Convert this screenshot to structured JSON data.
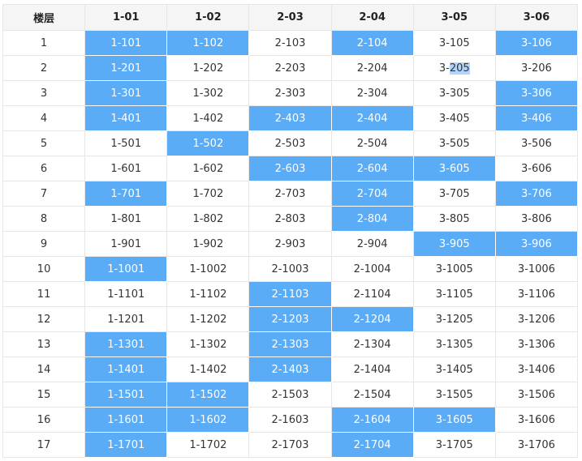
{
  "header": {
    "floor_label": "楼层",
    "units": [
      "1-01",
      "1-02",
      "2-03",
      "2-04",
      "3-05",
      "3-06"
    ]
  },
  "selected_color": "#5aacf7",
  "rows": [
    {
      "floor": "1",
      "rooms": [
        "1-101",
        "1-102",
        "2-103",
        "2-104",
        "3-105",
        "3-106"
      ],
      "selected": [
        true,
        true,
        false,
        true,
        false,
        true
      ]
    },
    {
      "floor": "2",
      "rooms": [
        "1-201",
        "1-202",
        "2-203",
        "2-204",
        "3-205",
        "3-206"
      ],
      "selected": [
        true,
        false,
        false,
        false,
        false,
        false
      ],
      "text_highlight": {
        "col": 4,
        "prefix": "3-",
        "highlight": "205"
      }
    },
    {
      "floor": "3",
      "rooms": [
        "1-301",
        "1-302",
        "2-303",
        "2-304",
        "3-305",
        "3-306"
      ],
      "selected": [
        true,
        false,
        false,
        false,
        false,
        true
      ]
    },
    {
      "floor": "4",
      "rooms": [
        "1-401",
        "1-402",
        "2-403",
        "2-404",
        "3-405",
        "3-406"
      ],
      "selected": [
        true,
        false,
        true,
        true,
        false,
        true
      ]
    },
    {
      "floor": "5",
      "rooms": [
        "1-501",
        "1-502",
        "2-503",
        "2-504",
        "3-505",
        "3-506"
      ],
      "selected": [
        false,
        true,
        false,
        false,
        false,
        false
      ]
    },
    {
      "floor": "6",
      "rooms": [
        "1-601",
        "1-602",
        "2-603",
        "2-604",
        "3-605",
        "3-606"
      ],
      "selected": [
        false,
        false,
        true,
        true,
        true,
        false
      ]
    },
    {
      "floor": "7",
      "rooms": [
        "1-701",
        "1-702",
        "2-703",
        "2-704",
        "3-705",
        "3-706"
      ],
      "selected": [
        true,
        false,
        false,
        true,
        false,
        true
      ]
    },
    {
      "floor": "8",
      "rooms": [
        "1-801",
        "1-802",
        "2-803",
        "2-804",
        "3-805",
        "3-806"
      ],
      "selected": [
        false,
        false,
        false,
        true,
        false,
        false
      ]
    },
    {
      "floor": "9",
      "rooms": [
        "1-901",
        "1-902",
        "2-903",
        "2-904",
        "3-905",
        "3-906"
      ],
      "selected": [
        false,
        false,
        false,
        false,
        true,
        true
      ]
    },
    {
      "floor": "10",
      "rooms": [
        "1-1001",
        "1-1002",
        "2-1003",
        "2-1004",
        "3-1005",
        "3-1006"
      ],
      "selected": [
        true,
        false,
        false,
        false,
        false,
        false
      ]
    },
    {
      "floor": "11",
      "rooms": [
        "1-1101",
        "1-1102",
        "2-1103",
        "2-1104",
        "3-1105",
        "3-1106"
      ],
      "selected": [
        false,
        false,
        true,
        false,
        false,
        false
      ]
    },
    {
      "floor": "12",
      "rooms": [
        "1-1201",
        "1-1202",
        "2-1203",
        "2-1204",
        "3-1205",
        "3-1206"
      ],
      "selected": [
        false,
        false,
        true,
        true,
        false,
        false
      ]
    },
    {
      "floor": "13",
      "rooms": [
        "1-1301",
        "1-1302",
        "2-1303",
        "2-1304",
        "3-1305",
        "3-1306"
      ],
      "selected": [
        true,
        false,
        true,
        false,
        false,
        false
      ]
    },
    {
      "floor": "14",
      "rooms": [
        "1-1401",
        "1-1402",
        "2-1403",
        "2-1404",
        "3-1405",
        "3-1406"
      ],
      "selected": [
        true,
        false,
        true,
        false,
        false,
        false
      ]
    },
    {
      "floor": "15",
      "rooms": [
        "1-1501",
        "1-1502",
        "2-1503",
        "2-1504",
        "3-1505",
        "3-1506"
      ],
      "selected": [
        true,
        true,
        false,
        false,
        false,
        false
      ]
    },
    {
      "floor": "16",
      "rooms": [
        "1-1601",
        "1-1602",
        "2-1603",
        "2-1604",
        "3-1605",
        "3-1606"
      ],
      "selected": [
        true,
        true,
        false,
        true,
        true,
        false
      ]
    },
    {
      "floor": "17",
      "rooms": [
        "1-1701",
        "1-1702",
        "2-1703",
        "2-1704",
        "3-1705",
        "3-1706"
      ],
      "selected": [
        true,
        false,
        false,
        true,
        false,
        false
      ]
    }
  ]
}
